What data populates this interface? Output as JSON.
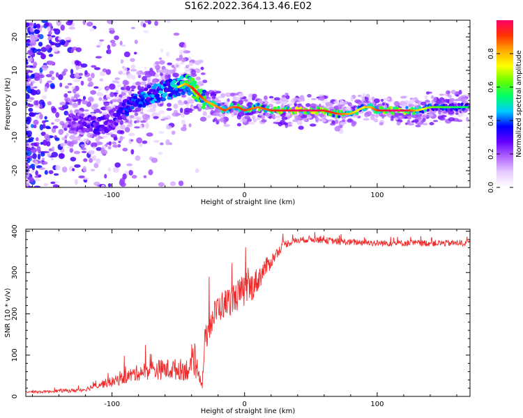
{
  "title": "S162.2022.364.13.46.E02",
  "chart_data": [
    {
      "type": "heatmap",
      "xlabel": "Height of straight line (km)",
      "ylabel": "Frequency (Hz)",
      "xlim": [
        -165,
        170
      ],
      "ylim": [
        -25,
        25
      ],
      "xticks": [
        -100,
        0,
        100
      ],
      "yticks": [
        -20,
        -10,
        0,
        10,
        20
      ],
      "colorbar": {
        "label": "Normalized spectral amplitude",
        "range": [
          0,
          1
        ],
        "ticks": [
          0.0,
          0.2,
          0.4,
          0.6,
          0.8
        ],
        "colors": [
          "#ffffff",
          "#e6ccff",
          "#b266ff",
          "#6600ff",
          "#0000ff",
          "#00ccff",
          "#00ff66",
          "#66ff00",
          "#ffff00",
          "#ffaa00",
          "#ff3300",
          "#ff0066"
        ]
      },
      "ridge": {
        "x": [
          -130,
          -120,
          -110,
          -100,
          -95,
          -90,
          -80,
          -70,
          -60,
          -50,
          -45,
          -40,
          -35,
          -30,
          -25,
          -20,
          -15,
          -10,
          -5,
          0,
          10,
          20,
          30,
          40,
          50,
          60,
          70,
          75,
          80,
          85,
          90,
          95,
          100,
          110,
          120,
          130,
          140,
          150,
          160,
          170
        ],
        "y": [
          -5,
          -6,
          -7,
          -5,
          -3,
          -1,
          1,
          3,
          4,
          5,
          6,
          5,
          3,
          1,
          0,
          -1,
          -2,
          -1,
          -1,
          -2,
          -1,
          -2,
          -2,
          -2,
          -2,
          -2,
          -3,
          -3,
          -3,
          -2,
          -1,
          -1,
          -2,
          -2,
          -2,
          -2,
          -1,
          -1,
          -1,
          -1
        ],
        "amp": [
          0.35,
          0.4,
          0.45,
          0.4,
          0.45,
          0.5,
          0.55,
          0.6,
          0.6,
          0.65,
          0.75,
          0.85,
          0.9,
          0.8,
          0.75,
          0.8,
          0.85,
          0.8,
          0.85,
          0.85,
          0.8,
          0.85,
          0.9,
          0.95,
          0.95,
          0.9,
          0.85,
          0.8,
          0.75,
          0.7,
          0.7,
          0.75,
          0.85,
          0.95,
          0.95,
          0.75,
          0.6,
          0.55,
          0.5,
          0.5
        ]
      }
    },
    {
      "type": "line",
      "xlabel": "Height of straight line (km)",
      "ylabel": "SNR (10 * v/v)",
      "xlim": [
        -165,
        170
      ],
      "ylim": [
        0,
        405
      ],
      "xticks": [
        -100,
        0,
        100
      ],
      "yticks": [
        0,
        100,
        200,
        300,
        400
      ],
      "color": "#ee2a2a",
      "series": [
        {
          "x": [
            -165,
            -150,
            -140,
            -130,
            -120,
            -110,
            -100,
            -90,
            -80,
            -70,
            -60,
            -50,
            -40,
            -35,
            -32,
            -30,
            -25,
            -20,
            -15,
            -10,
            -5,
            0,
            5,
            10,
            15,
            20,
            25,
            30,
            40,
            50,
            60,
            70,
            80,
            90,
            100,
            110,
            120,
            130,
            140,
            150,
            160,
            170
          ],
          "values": [
            10,
            10,
            12,
            12,
            15,
            25,
            30,
            40,
            50,
            55,
            55,
            55,
            55,
            60,
            20,
            120,
            170,
            200,
            210,
            220,
            230,
            240,
            250,
            270,
            300,
            320,
            345,
            365,
            375,
            378,
            375,
            372,
            370,
            370,
            368,
            368,
            368,
            368,
            368,
            368,
            368,
            368
          ],
          "noise": [
            3,
            4,
            5,
            6,
            6,
            12,
            15,
            20,
            25,
            30,
            32,
            33,
            35,
            32,
            15,
            40,
            45,
            45,
            45,
            45,
            48,
            50,
            45,
            40,
            30,
            22,
            15,
            12,
            10,
            10,
            10,
            10,
            10,
            10,
            10,
            10,
            10,
            10,
            10,
            10,
            10,
            10
          ]
        }
      ]
    }
  ]
}
